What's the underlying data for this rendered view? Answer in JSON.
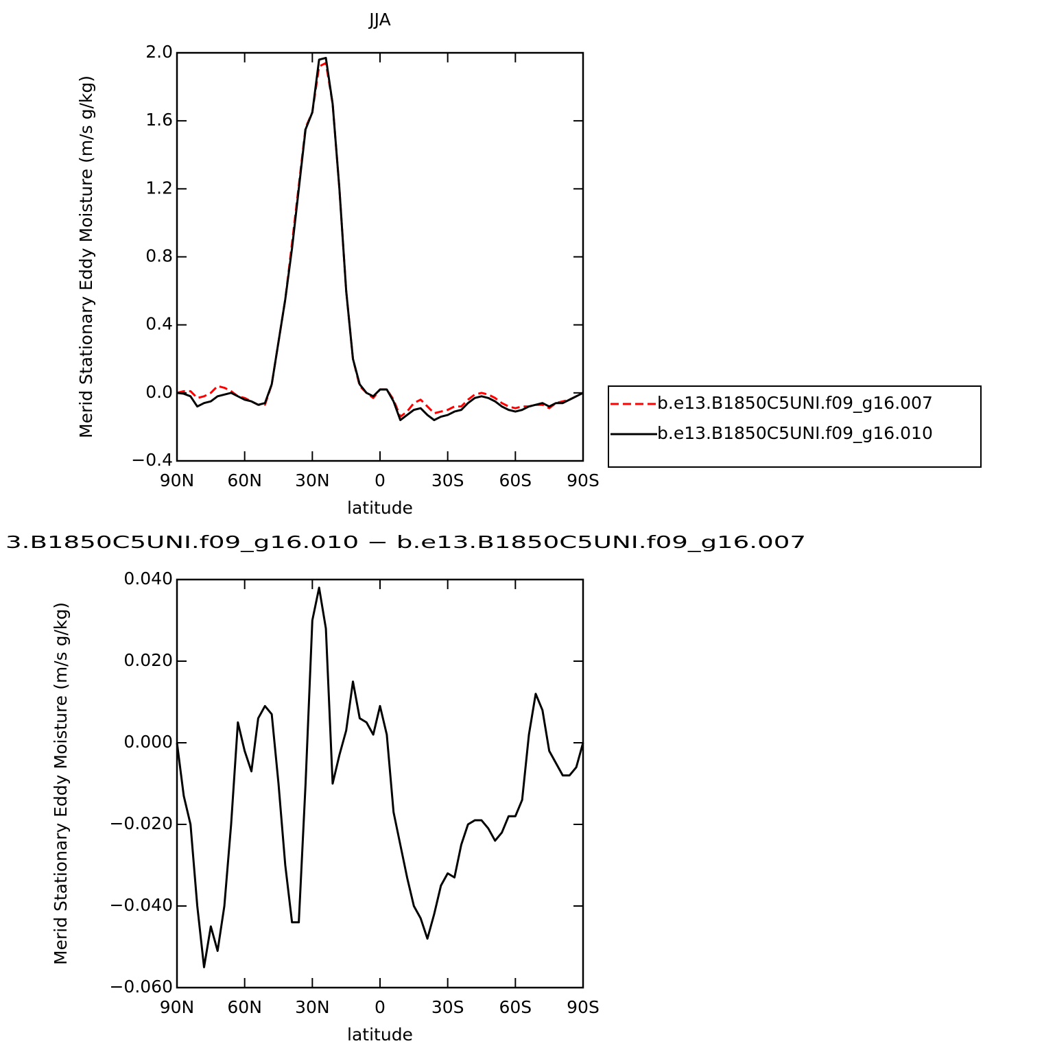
{
  "chart_data": [
    {
      "type": "line",
      "title": "JJA",
      "xlabel": "latitude",
      "ylabel": "Merid Stationary Eddy Moisture (m/s g/kg)",
      "x": [
        90,
        87,
        84,
        81,
        78,
        75,
        72,
        69,
        66,
        63,
        60,
        57,
        54,
        51,
        48,
        45,
        42,
        39,
        36,
        33,
        30,
        27,
        24,
        21,
        18,
        15,
        12,
        9,
        6,
        3,
        0,
        -3,
        -6,
        -9,
        -12,
        -15,
        -18,
        -21,
        -24,
        -27,
        -30,
        -33,
        -36,
        -39,
        -42,
        -45,
        -48,
        -51,
        -54,
        -57,
        -60,
        -63,
        -66,
        -69,
        -72,
        -75,
        -78,
        -81,
        -84,
        -87,
        -90
      ],
      "series": [
        {
          "name": "b.e13.B1850C5UNI.f09_g16.007",
          "color": "#ff0000",
          "line_style": "dashed",
          "values": [
            0,
            0.01,
            0.01,
            -0.03,
            -0.02,
            0,
            0.04,
            0.03,
            0.01,
            -0.02,
            -0.03,
            -0.05,
            -0.07,
            -0.07,
            0.05,
            0.3,
            0.55,
            0.88,
            1.22,
            1.56,
            1.65,
            1.92,
            1.94,
            1.7,
            1.2,
            0.6,
            0.2,
            0.04,
            0,
            -0.03,
            0.02,
            0.02,
            -0.04,
            -0.14,
            -0.11,
            -0.06,
            -0.04,
            -0.08,
            -0.12,
            -0.11,
            -0.1,
            -0.08,
            -0.08,
            -0.04,
            -0.01,
            0,
            -0.01,
            -0.03,
            -0.06,
            -0.08,
            -0.09,
            -0.08,
            -0.08,
            -0.07,
            -0.07,
            -0.09,
            -0.06,
            -0.05,
            -0.04,
            -0.02,
            0
          ]
        },
        {
          "name": "b.e13.B1850C5UNI.f09_g16.010",
          "color": "#000000",
          "line_style": "solid",
          "values": [
            0,
            -0.005,
            -0.02,
            -0.08,
            -0.06,
            -0.05,
            -0.02,
            -0.01,
            0,
            -0.02,
            -0.04,
            -0.05,
            -0.07,
            -0.06,
            0.05,
            0.3,
            0.55,
            0.85,
            1.2,
            1.55,
            1.65,
            1.96,
            1.97,
            1.7,
            1.2,
            0.6,
            0.2,
            0.05,
            0,
            -0.02,
            0.02,
            0.02,
            -0.05,
            -0.16,
            -0.13,
            -0.1,
            -0.09,
            -0.13,
            -0.16,
            -0.14,
            -0.13,
            -0.11,
            -0.1,
            -0.06,
            -0.03,
            -0.02,
            -0.03,
            -0.05,
            -0.08,
            -0.1,
            -0.11,
            -0.1,
            -0.08,
            -0.07,
            -0.06,
            -0.08,
            -0.06,
            -0.06,
            -0.04,
            -0.02,
            0
          ]
        }
      ],
      "xlim": [
        90,
        -90
      ],
      "xticks": [
        {
          "value": 90,
          "label": "90N"
        },
        {
          "value": 60,
          "label": "60N"
        },
        {
          "value": 30,
          "label": "30N"
        },
        0,
        {
          "value": -30,
          "label": "30S"
        },
        {
          "value": -60,
          "label": "60S"
        },
        {
          "value": -90,
          "label": "90S"
        }
      ],
      "ylim": [
        -0.4,
        2.0
      ],
      "yticks": [
        {
          "value": -0.4,
          "label": "−0.4"
        },
        {
          "value": 0,
          "label": "0.0"
        },
        0.4,
        0.8,
        1.2,
        1.6,
        {
          "value": 2.0,
          "label": "2.0"
        }
      ],
      "legend": "right"
    },
    {
      "type": "line",
      "title": "3.B1850C5UNI.f09_g16.010 − b.e13.B1850C5UNI.f09_g16.007",
      "xlabel": "latitude",
      "ylabel": "Merid Stationary Eddy Moisture (m/s g/kg)",
      "x": [
        90,
        87,
        84,
        81,
        78,
        75,
        72,
        69,
        66,
        63,
        60,
        57,
        54,
        51,
        48,
        45,
        42,
        39,
        36,
        33,
        30,
        27,
        24,
        21,
        18,
        15,
        12,
        9,
        6,
        3,
        0,
        -3,
        -6,
        -9,
        -12,
        -15,
        -18,
        -21,
        -24,
        -27,
        -30,
        -33,
        -36,
        -39,
        -42,
        -45,
        -48,
        -51,
        -54,
        -57,
        -60,
        -63,
        -66,
        -69,
        -72,
        -75,
        -78,
        -81,
        -84,
        -87,
        -90
      ],
      "color": "#000000",
      "values": [
        0,
        -0.013,
        -0.02,
        -0.04,
        -0.055,
        -0.045,
        -0.051,
        -0.04,
        -0.02,
        0.005,
        -0.002,
        -0.007,
        0.006,
        0.009,
        0.007,
        -0.01,
        -0.03,
        -0.044,
        -0.044,
        -0.01,
        0.03,
        0.038,
        0.028,
        -0.01,
        -0.003,
        0.003,
        0.015,
        0.006,
        0.005,
        0.002,
        0.009,
        0.002,
        -0.017,
        -0.025,
        -0.033,
        -0.04,
        -0.043,
        -0.048,
        -0.042,
        -0.035,
        -0.032,
        -0.033,
        -0.025,
        -0.02,
        -0.019,
        -0.019,
        -0.021,
        -0.024,
        -0.022,
        -0.018,
        -0.018,
        -0.014,
        0.002,
        0.012,
        0.008,
        -0.002,
        -0.005,
        -0.008,
        -0.008,
        -0.006,
        0
      ],
      "xlim": [
        90,
        -90
      ],
      "xticks": [
        {
          "value": 90,
          "label": "90N"
        },
        {
          "value": 60,
          "label": "60N"
        },
        {
          "value": 30,
          "label": "30N"
        },
        0,
        {
          "value": -30,
          "label": "30S"
        },
        {
          "value": -60,
          "label": "60S"
        },
        {
          "value": -90,
          "label": "90S"
        }
      ],
      "ylim": [
        -0.06,
        0.04
      ],
      "yticks": [
        {
          "value": -0.06,
          "label": "−0.060"
        },
        {
          "value": -0.04,
          "label": "−0.040"
        },
        {
          "value": -0.02,
          "label": "−0.020"
        },
        {
          "value": 0,
          "label": "0.000"
        },
        {
          "value": 0.02,
          "label": "0.020"
        },
        {
          "value": 0.04,
          "label": "0.040"
        }
      ]
    }
  ]
}
